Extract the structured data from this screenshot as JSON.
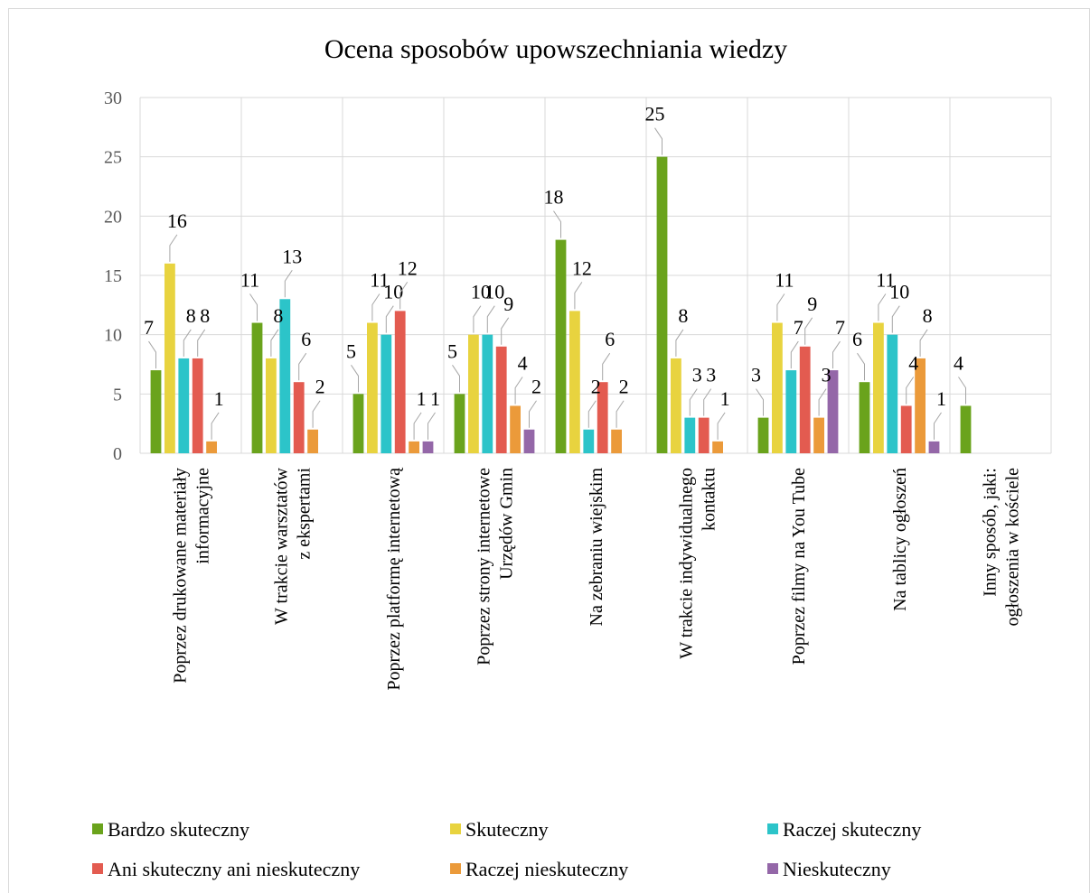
{
  "chart_data": {
    "type": "bar",
    "title": "Ocena sposobów upowszechniania wiedzy",
    "categories": [
      [
        "Poprzez drukowane materiały",
        "informacyjne"
      ],
      [
        "W trakcie warsztatów",
        "z ekspertami"
      ],
      [
        "Poprzez platformę internetową"
      ],
      [
        "Poprzez strony internetowe",
        "Urzędów Gmin"
      ],
      [
        "Na zebraniu wiejskim"
      ],
      [
        "W trakcie indywidualnego",
        "kontaktu"
      ],
      [
        "Poprzez filmy na You Tube"
      ],
      [
        "Na tablicy ogłoszeń"
      ],
      [
        "Inny sposób, jaki:",
        "ogłoszenia w kościele"
      ]
    ],
    "series": [
      {
        "name": "Bardzo skuteczny",
        "color": "#6aa31c",
        "values": [
          7,
          11,
          5,
          5,
          18,
          25,
          3,
          6,
          4
        ]
      },
      {
        "name": "Skuteczny",
        "color": "#e8d33f",
        "values": [
          16,
          8,
          11,
          10,
          12,
          8,
          11,
          11,
          null
        ]
      },
      {
        "name": "Raczej skuteczny",
        "color": "#2cc4c9",
        "values": [
          8,
          13,
          10,
          10,
          2,
          3,
          7,
          10,
          null
        ]
      },
      {
        "name": "Ani skuteczny ani nieskuteczny",
        "color": "#e35b50",
        "values": [
          8,
          6,
          12,
          9,
          6,
          3,
          9,
          4,
          null
        ]
      },
      {
        "name": "Raczej nieskuteczny",
        "color": "#eb9a3a",
        "values": [
          1,
          2,
          1,
          4,
          2,
          1,
          3,
          8,
          null
        ]
      },
      {
        "name": "Nieskuteczny",
        "color": "#9467a8",
        "values": [
          null,
          null,
          1,
          2,
          null,
          null,
          7,
          1,
          null
        ]
      }
    ],
    "ylim": [
      0,
      30
    ],
    "yticks": [
      0,
      5,
      10,
      15,
      20,
      25,
      30
    ],
    "grid": true,
    "legend_position": "bottom"
  }
}
